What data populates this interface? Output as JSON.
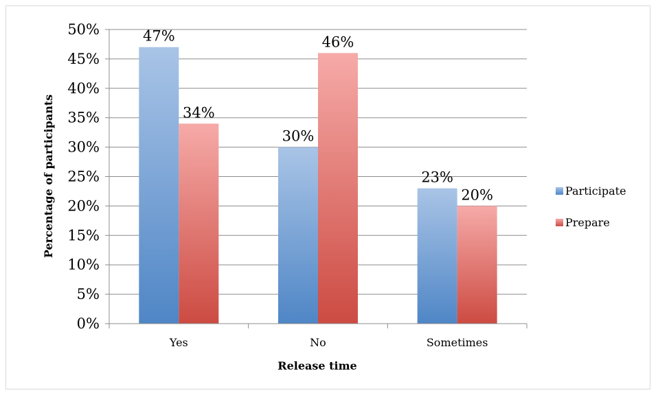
{
  "chart_data": {
    "type": "bar",
    "title": "",
    "xlabel": "Release time",
    "ylabel": "Percentage of participants",
    "categories": [
      "Yes",
      "No",
      "Sometimes"
    ],
    "series": [
      {
        "name": "Participate",
        "values": [
          47,
          30,
          23
        ],
        "labels": [
          "47%",
          "30%",
          "23%"
        ],
        "color_top": "#a9c4e6",
        "color_bottom": "#4f86c6"
      },
      {
        "name": "Prepare",
        "values": [
          34,
          46,
          20
        ],
        "labels": [
          "34%",
          "46%",
          "20%"
        ],
        "color_top": "#f6aaa8",
        "color_bottom": "#cc4b42"
      }
    ],
    "ylim": [
      0,
      50
    ],
    "yticks": [
      0,
      5,
      10,
      15,
      20,
      25,
      30,
      35,
      40,
      45,
      50
    ],
    "ytick_labels": [
      "0%",
      "5%",
      "10%",
      "15%",
      "20%",
      "25%",
      "30%",
      "35%",
      "40%",
      "45%",
      "50%"
    ],
    "grid": true,
    "legend_position": "right"
  }
}
